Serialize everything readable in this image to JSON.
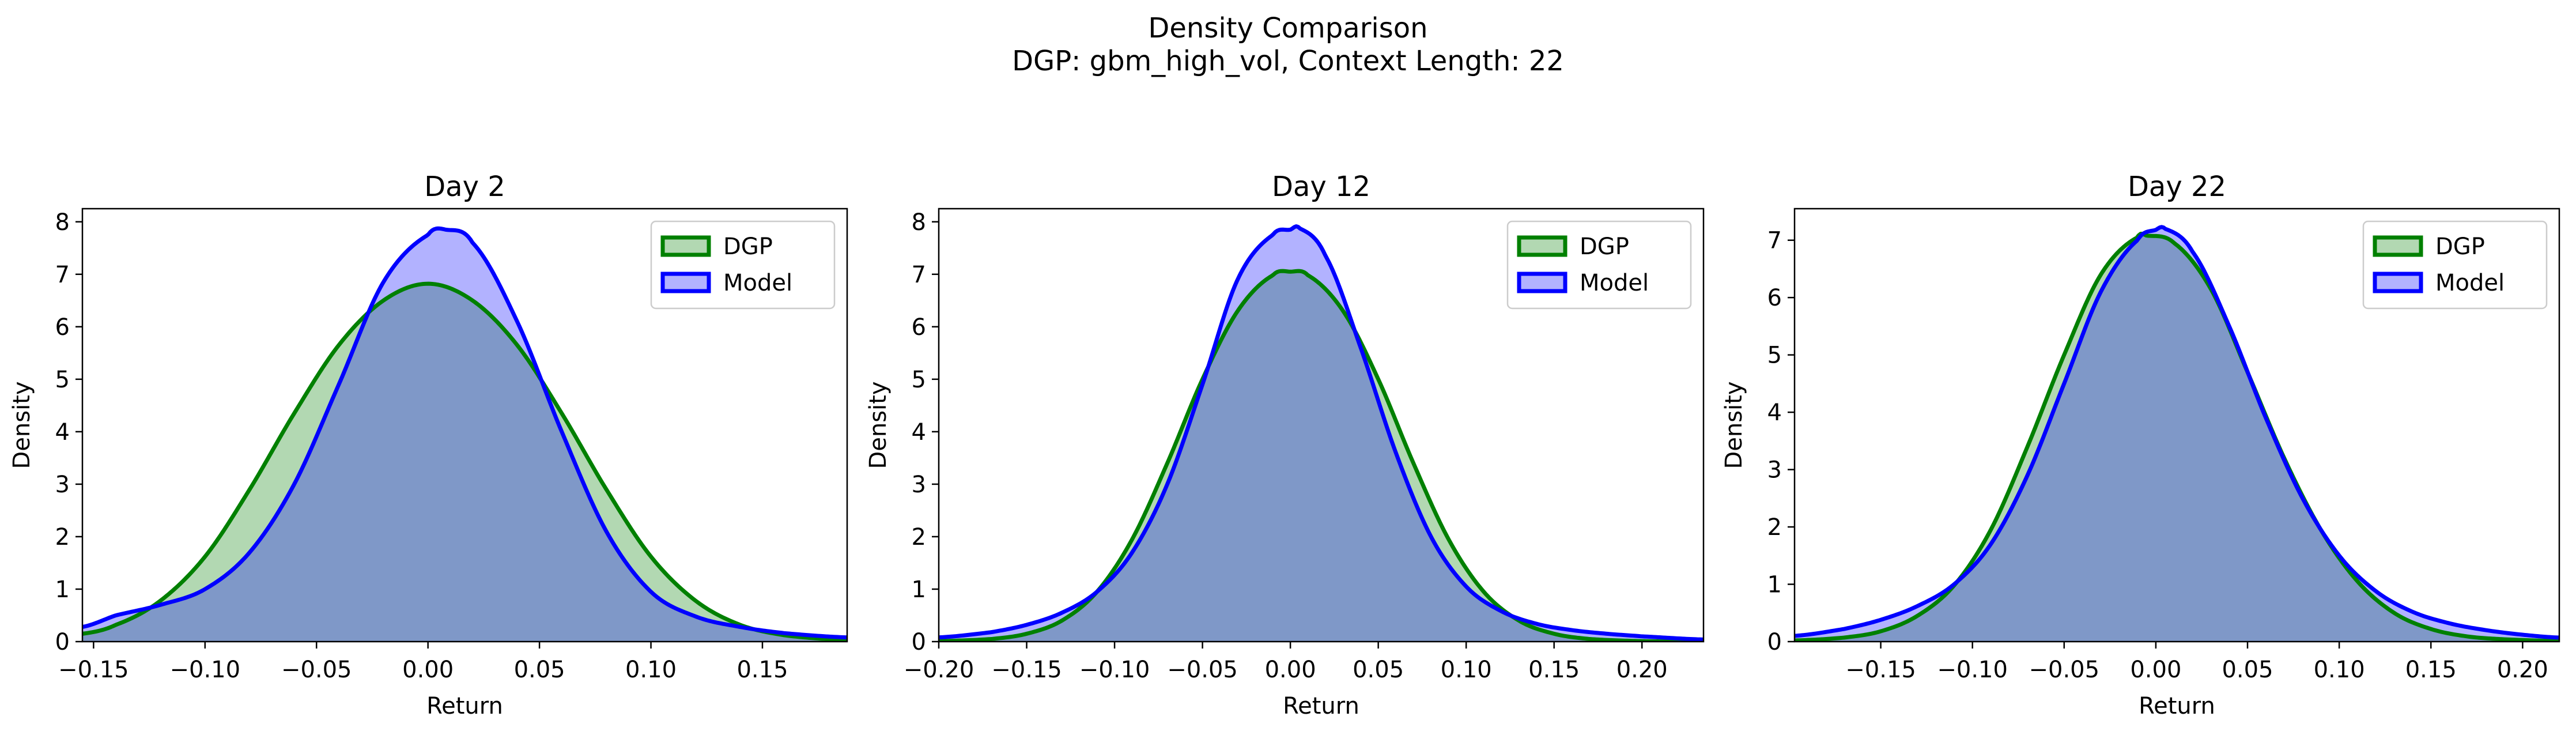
{
  "figure": {
    "title_line1": "Density Comparison",
    "title_line2": "DGP: gbm_high_vol, Context Length: 22"
  },
  "colors": {
    "dgp_line": "#008000",
    "dgp_fill": "#b2d8b2",
    "model_line": "#0000ff",
    "model_fill": "#b2b2ff",
    "overlap_fill": "#7f98c8",
    "axes": "#000000"
  },
  "chart_data": [
    {
      "type": "area",
      "title": "Day 2",
      "xlabel": "Return",
      "ylabel": "Density",
      "xlim": [
        -0.155,
        0.188
      ],
      "ylim": [
        0,
        8.25
      ],
      "xticks": [
        -0.15,
        -0.1,
        -0.05,
        0.0,
        0.05,
        0.1,
        0.15
      ],
      "xticklabels": [
        "−0.15",
        "−0.10",
        "−0.05",
        "0.00",
        "0.05",
        "0.10",
        "0.15"
      ],
      "yticks": [
        0,
        1,
        2,
        3,
        4,
        5,
        6,
        7,
        8
      ],
      "yticklabels": [
        "0",
        "1",
        "2",
        "3",
        "4",
        "5",
        "6",
        "7",
        "8"
      ],
      "legend_position": "upper right",
      "legend": [
        "DGP",
        "Model"
      ],
      "series": [
        {
          "name": "DGP",
          "x": [
            -0.155,
            -0.14,
            -0.12,
            -0.1,
            -0.08,
            -0.06,
            -0.04,
            -0.02,
            0.0,
            0.02,
            0.04,
            0.06,
            0.08,
            0.1,
            0.12,
            0.14,
            0.16,
            0.188
          ],
          "y": [
            0.15,
            0.32,
            0.78,
            1.62,
            2.9,
            4.35,
            5.65,
            6.5,
            6.82,
            6.5,
            5.65,
            4.35,
            2.9,
            1.62,
            0.78,
            0.32,
            0.12,
            0.03
          ]
        },
        {
          "name": "Model",
          "x": [
            -0.155,
            -0.14,
            -0.12,
            -0.1,
            -0.08,
            -0.06,
            -0.04,
            -0.02,
            0.0,
            0.008,
            0.02,
            0.04,
            0.06,
            0.08,
            0.1,
            0.12,
            0.14,
            0.16,
            0.188
          ],
          "y": [
            0.28,
            0.5,
            0.7,
            1.0,
            1.7,
            3.0,
            4.9,
            6.85,
            7.75,
            7.85,
            7.6,
            6.1,
            4.0,
            2.1,
            0.95,
            0.48,
            0.28,
            0.16,
            0.08
          ]
        }
      ]
    },
    {
      "type": "area",
      "title": "Day 12",
      "xlabel": "Return",
      "ylabel": "Density",
      "xlim": [
        -0.2,
        0.235
      ],
      "ylim": [
        0,
        8.25
      ],
      "xticks": [
        -0.2,
        -0.15,
        -0.1,
        -0.05,
        0.0,
        0.05,
        0.1,
        0.15,
        0.2
      ],
      "xticklabels": [
        "−0.20",
        "−0.15",
        "−0.10",
        "−0.05",
        "0.00",
        "0.05",
        "0.10",
        "0.15",
        "0.20"
      ],
      "yticks": [
        0,
        1,
        2,
        3,
        4,
        5,
        6,
        7,
        8
      ],
      "yticklabels": [
        "0",
        "1",
        "2",
        "3",
        "4",
        "5",
        "6",
        "7",
        "8"
      ],
      "legend_position": "upper right",
      "legend": [
        "DGP",
        "Model"
      ],
      "series": [
        {
          "name": "DGP",
          "x": [
            -0.2,
            -0.17,
            -0.15,
            -0.13,
            -0.11,
            -0.09,
            -0.07,
            -0.05,
            -0.03,
            -0.01,
            0.0,
            0.01,
            0.03,
            0.05,
            0.07,
            0.09,
            0.11,
            0.13,
            0.15,
            0.17,
            0.2,
            0.235
          ],
          "y": [
            0.01,
            0.05,
            0.15,
            0.4,
            0.95,
            1.95,
            3.4,
            5.0,
            6.3,
            6.98,
            7.05,
            6.98,
            6.3,
            5.0,
            3.4,
            1.95,
            0.95,
            0.4,
            0.15,
            0.05,
            0.01,
            0.0
          ]
        },
        {
          "name": "Model",
          "x": [
            -0.2,
            -0.17,
            -0.15,
            -0.13,
            -0.11,
            -0.09,
            -0.07,
            -0.05,
            -0.03,
            -0.01,
            0.0,
            0.005,
            0.02,
            0.04,
            0.06,
            0.08,
            0.1,
            0.12,
            0.14,
            0.16,
            0.18,
            0.2,
            0.235
          ],
          "y": [
            0.08,
            0.18,
            0.32,
            0.55,
            0.95,
            1.7,
            3.0,
            4.9,
            6.9,
            7.75,
            7.85,
            7.88,
            7.35,
            5.6,
            3.6,
            2.0,
            1.05,
            0.58,
            0.34,
            0.22,
            0.15,
            0.1,
            0.04
          ]
        }
      ]
    },
    {
      "type": "area",
      "title": "Day 22",
      "xlabel": "Return",
      "ylabel": "Density",
      "xlim": [
        -0.197,
        0.22
      ],
      "ylim": [
        0,
        7.55
      ],
      "xticks": [
        -0.15,
        -0.1,
        -0.05,
        0.0,
        0.05,
        0.1,
        0.15,
        0.2
      ],
      "xticklabels": [
        "−0.15",
        "−0.10",
        "−0.05",
        "0.00",
        "0.05",
        "0.10",
        "0.15",
        "0.20"
      ],
      "yticks": [
        0,
        1,
        2,
        3,
        4,
        5,
        6,
        7
      ],
      "yticklabels": [
        "0",
        "1",
        "2",
        "3",
        "4",
        "5",
        "6",
        "7"
      ],
      "legend_position": "upper right",
      "legend": [
        "DGP",
        "Model"
      ],
      "series": [
        {
          "name": "DGP",
          "x": [
            -0.197,
            -0.17,
            -0.15,
            -0.13,
            -0.11,
            -0.09,
            -0.07,
            -0.05,
            -0.03,
            -0.01,
            -0.005,
            0.01,
            0.03,
            0.05,
            0.07,
            0.09,
            0.11,
            0.13,
            0.15,
            0.17,
            0.19,
            0.22
          ],
          "y": [
            0.02,
            0.07,
            0.18,
            0.45,
            0.98,
            1.95,
            3.4,
            5.0,
            6.4,
            7.05,
            7.08,
            6.95,
            6.15,
            4.7,
            3.2,
            1.95,
            1.05,
            0.5,
            0.22,
            0.09,
            0.04,
            0.01
          ]
        },
        {
          "name": "Model",
          "x": [
            -0.197,
            -0.17,
            -0.15,
            -0.13,
            -0.11,
            -0.09,
            -0.07,
            -0.05,
            -0.03,
            -0.01,
            0.0,
            0.005,
            0.02,
            0.04,
            0.06,
            0.08,
            0.1,
            0.12,
            0.14,
            0.16,
            0.18,
            0.2,
            0.22
          ],
          "y": [
            0.1,
            0.22,
            0.38,
            0.62,
            1.0,
            1.7,
            2.9,
            4.5,
            6.1,
            7.0,
            7.18,
            7.2,
            6.8,
            5.5,
            3.9,
            2.5,
            1.5,
            0.88,
            0.52,
            0.32,
            0.2,
            0.12,
            0.07
          ]
        }
      ]
    }
  ]
}
